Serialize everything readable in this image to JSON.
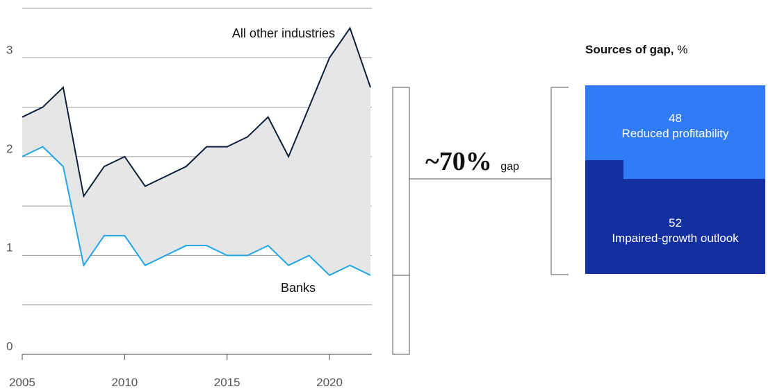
{
  "chart_data": {
    "type": "line",
    "x": [
      2005,
      2006,
      2007,
      2008,
      2009,
      2010,
      2011,
      2012,
      2013,
      2014,
      2015,
      2016,
      2017,
      2018,
      2019,
      2020,
      2021,
      2022
    ],
    "series": [
      {
        "name": "All other industries",
        "values": [
          2.4,
          2.5,
          2.7,
          1.6,
          1.9,
          2.0,
          1.7,
          1.8,
          1.9,
          2.1,
          2.1,
          2.2,
          2.4,
          2.0,
          2.5,
          3.0,
          3.3,
          2.7
        ],
        "color": "#0b1f3a"
      },
      {
        "name": "Banks",
        "values": [
          2.0,
          2.1,
          1.9,
          0.9,
          1.2,
          1.2,
          0.9,
          1.0,
          1.1,
          1.1,
          1.0,
          1.0,
          1.1,
          0.9,
          1.0,
          0.8,
          0.9,
          0.8
        ],
        "color": "#1fa5e8"
      }
    ],
    "x_ticks": [
      "2005",
      "2010",
      "2015",
      "2020"
    ],
    "y_ticks": [
      "0",
      "1",
      "2",
      "3"
    ],
    "xlim": [
      2005,
      2022
    ],
    "ylim": [
      0,
      3.5
    ],
    "grid": true,
    "fill_between": "gap shaded light gray",
    "fill_color": "#e6e6e6"
  },
  "gap_annotation": {
    "value": "~70%",
    "suffix": "gap"
  },
  "sources": {
    "title_bold": "Sources of gap,",
    "title_unit": "%",
    "items": [
      {
        "value": "48",
        "label": "Reduced profitability",
        "share": 48,
        "color": "#2f7cf6"
      },
      {
        "value": "52",
        "label": "Impaired-growth outlook",
        "share": 52,
        "color": "#1430a0"
      }
    ]
  }
}
